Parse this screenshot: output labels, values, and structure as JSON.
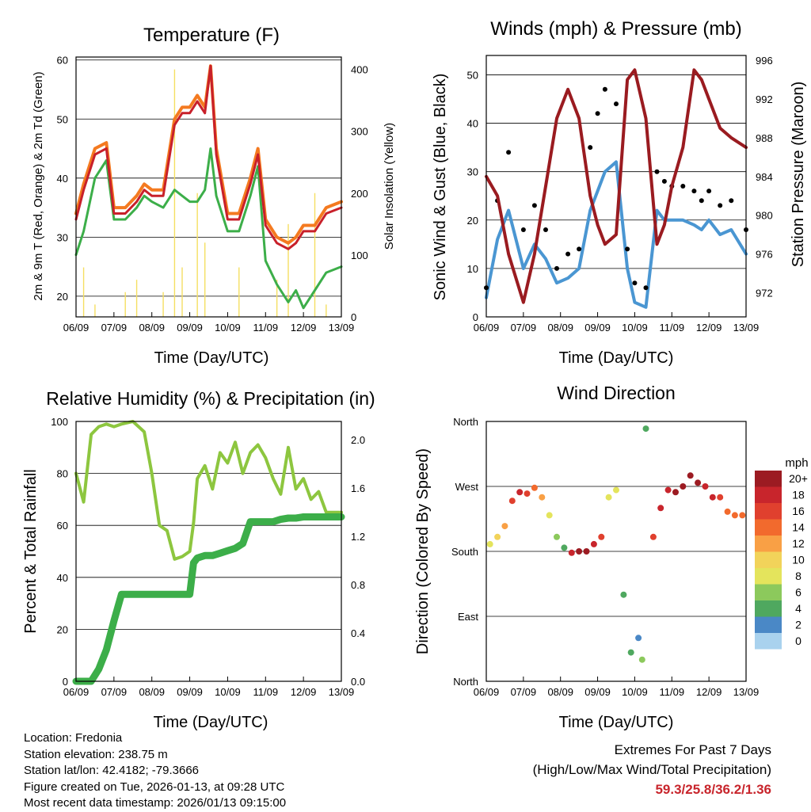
{
  "colors": {
    "temp2m": "#c8202a",
    "temp9m": "#f47a20",
    "dewpoint": "#3cae49",
    "solar": "#f5df62",
    "wind": "#4a96d2",
    "gust": "#000000",
    "pressure": "#9a1b20",
    "rh": "#8dc63f",
    "precip": "#3cae49",
    "extremes_value": "#c8252c"
  },
  "panels": {
    "temperature": {
      "title": "Temperature (F)",
      "xlabel": "Time (Day/UTC)",
      "ylabel_left": "2m & 9m T (Red, Orange) & 2m Td (Green)",
      "ylabel_right": "Solar Insolation (Yellow)",
      "yticks_left": [
        "60",
        "50",
        "40",
        "30",
        "20"
      ],
      "yticks_right": [
        "400",
        "300",
        "200",
        "100",
        "0"
      ]
    },
    "wind": {
      "title": "Winds (mph) & Pressure (mb)",
      "xlabel": "Time (Day/UTC)",
      "ylabel_left": "Sonic Wind & Gust (Blue, Black)",
      "ylabel_right": "Station Pressure (Maroon)",
      "yticks_left": [
        "50",
        "40",
        "30",
        "20",
        "10",
        "0"
      ],
      "yticks_right": [
        "996",
        "992",
        "988",
        "984",
        "980",
        "976",
        "972"
      ]
    },
    "humidity": {
      "title": "Relative Humidity (%) & Precipitation (in)",
      "xlabel": "Time (Day/UTC)",
      "ylabel_left": "Percent & Total Rainfall",
      "yticks_left": [
        "100",
        "80",
        "60",
        "40",
        "20",
        "0"
      ],
      "yticks_right": [
        "2.0",
        "1.6",
        "1.2",
        "0.8",
        "0.4",
        "0.0"
      ]
    },
    "direction": {
      "title": "Wind Direction",
      "xlabel": "Time (Day/UTC)",
      "ylabel_left": "Direction (Colored By Speed)",
      "yticks_left": [
        "North",
        "West",
        "South",
        "East",
        "North"
      ],
      "legend_title": "mph",
      "legend_labels": [
        "20+",
        "18",
        "16",
        "14",
        "12",
        "10",
        "8",
        "6",
        "4",
        "2",
        "0"
      ],
      "legend_colors": [
        "#9c1b22",
        "#c8252c",
        "#e0402e",
        "#f26a2d",
        "#f9a045",
        "#f2d35a",
        "#e4e45c",
        "#8cc95c",
        "#4fa85f",
        "#4a88c6",
        "#a9d2ee"
      ]
    }
  },
  "chart_data": [
    {
      "type": "line",
      "title": "Temperature (F)",
      "xlabel": "Time (Day/UTC)",
      "ylabel": "2m & 9m T (Red, Orange) & 2m Td (Green)",
      "y2label": "Solar Insolation (Yellow)",
      "categories": [
        "06/09",
        "07/09",
        "08/09",
        "09/09",
        "10/09",
        "11/09",
        "12/09",
        "13/09"
      ],
      "x": [
        0,
        0.2,
        0.5,
        0.8,
        1.0,
        1.3,
        1.6,
        1.8,
        2.0,
        2.3,
        2.6,
        2.8,
        3.0,
        3.2,
        3.4,
        3.55,
        3.7,
        4.0,
        4.3,
        4.6,
        4.8,
        5.0,
        5.3,
        5.6,
        5.8,
        6.0,
        6.3,
        6.6,
        7.0
      ],
      "ylim": [
        16.5,
        60.5
      ],
      "y2lim": [
        0,
        420
      ],
      "series": [
        {
          "name": "2m T",
          "values": [
            33,
            38,
            44,
            45,
            34,
            34,
            36,
            38,
            37,
            37,
            49,
            51,
            51,
            53,
            51,
            59,
            44,
            33,
            33,
            39,
            44,
            32,
            29,
            28,
            29,
            31,
            31,
            34,
            35
          ]
        },
        {
          "name": "9m T",
          "values": [
            34,
            39,
            45,
            46,
            35,
            35,
            37,
            39,
            38,
            38,
            50,
            52,
            52,
            54,
            52,
            59,
            45,
            34,
            34,
            40,
            45,
            33,
            30,
            29,
            30,
            32,
            32,
            35,
            36
          ]
        },
        {
          "name": "2m Td",
          "values": [
            27,
            31,
            40,
            43,
            33,
            33,
            35,
            37,
            36,
            35,
            38,
            37,
            36,
            36,
            38,
            45,
            37,
            31,
            31,
            37,
            42,
            26,
            22,
            19,
            21,
            18,
            21,
            24,
            25
          ]
        },
        {
          "name": "Solar Insolation",
          "values": [
            0,
            80,
            20,
            0,
            0,
            40,
            60,
            0,
            0,
            40,
            400,
            80,
            0,
            200,
            120,
            0,
            0,
            0,
            80,
            0,
            0,
            0,
            60,
            150,
            0,
            0,
            200,
            20,
            0
          ]
        }
      ]
    },
    {
      "type": "line",
      "title": "Winds (mph) & Pressure (mb)",
      "xlabel": "Time (Day/UTC)",
      "ylabel": "Sonic Wind & Gust (Blue, Black)",
      "y2label": "Station Pressure (Maroon)",
      "categories": [
        "06/09",
        "07/09",
        "08/09",
        "09/09",
        "10/09",
        "11/09",
        "12/09",
        "13/09"
      ],
      "x": [
        0,
        0.3,
        0.6,
        1.0,
        1.3,
        1.6,
        1.9,
        2.2,
        2.5,
        2.8,
        3.0,
        3.2,
        3.5,
        3.8,
        4.0,
        4.3,
        4.6,
        4.8,
        5.0,
        5.3,
        5.6,
        5.8,
        6.0,
        6.3,
        6.6,
        7.0
      ],
      "ylim": [
        0,
        54
      ],
      "y2lim": [
        969.5,
        996.5
      ],
      "series": [
        {
          "name": "Sonic Wind",
          "values": [
            4,
            16,
            22,
            10,
            15,
            12,
            7,
            8,
            10,
            22,
            26,
            30,
            32,
            10,
            3,
            2,
            22,
            20,
            20,
            20,
            19,
            18,
            20,
            17,
            18,
            13
          ]
        },
        {
          "name": "Gust",
          "values": [
            6,
            24,
            34,
            18,
            23,
            18,
            10,
            13,
            14,
            35,
            42,
            47,
            44,
            14,
            7,
            6,
            30,
            28,
            27,
            27,
            26,
            24,
            26,
            23,
            24,
            18
          ]
        },
        {
          "name": "Station Pressure",
          "values": [
            984,
            982,
            976,
            971,
            976,
            983,
            990,
            993,
            990,
            982,
            979,
            977,
            978,
            994,
            995,
            990,
            977,
            979,
            983,
            987,
            995,
            994,
            992,
            989,
            988,
            987
          ]
        }
      ]
    },
    {
      "type": "line",
      "title": "Relative Humidity (%) & Precipitation (in)",
      "xlabel": "Time (Day/UTC)",
      "ylabel": "Percent & Total Rainfall",
      "categories": [
        "06/09",
        "07/09",
        "08/09",
        "09/09",
        "10/09",
        "11/09",
        "12/09",
        "13/09"
      ],
      "x": [
        0,
        0.2,
        0.4,
        0.6,
        0.8,
        1.0,
        1.2,
        1.5,
        1.8,
        2.0,
        2.2,
        2.4,
        2.6,
        2.8,
        3.0,
        3.1,
        3.2,
        3.4,
        3.6,
        3.8,
        4.0,
        4.2,
        4.4,
        4.6,
        4.8,
        5.0,
        5.2,
        5.4,
        5.6,
        5.8,
        6.0,
        6.2,
        6.4,
        6.6,
        6.8,
        7.0
      ],
      "ylim": [
        0,
        100
      ],
      "y2lim": [
        0,
        2.15
      ],
      "series": [
        {
          "name": "Relative Humidity",
          "values": [
            80,
            69,
            95,
            98,
            99,
            98,
            99,
            100,
            96,
            80,
            60,
            58,
            47,
            48,
            50,
            61,
            78,
            83,
            74,
            88,
            84,
            92,
            80,
            88,
            91,
            86,
            78,
            72,
            90,
            74,
            78,
            70,
            73,
            65,
            65,
            65
          ]
        },
        {
          "name": "Total Precipitation",
          "values": [
            0.0,
            0.0,
            0.0,
            0.1,
            0.26,
            0.5,
            0.72,
            0.72,
            0.72,
            0.72,
            0.72,
            0.72,
            0.72,
            0.72,
            0.72,
            0.98,
            1.02,
            1.04,
            1.04,
            1.06,
            1.08,
            1.1,
            1.14,
            1.32,
            1.32,
            1.32,
            1.32,
            1.34,
            1.35,
            1.35,
            1.36,
            1.36,
            1.36,
            1.36,
            1.36,
            1.36
          ]
        }
      ]
    },
    {
      "type": "scatter",
      "title": "Wind Direction",
      "xlabel": "Time (Day/UTC)",
      "ylabel": "Direction (Colored By Speed)",
      "categories": [
        "06/09",
        "07/09",
        "08/09",
        "09/09",
        "10/09",
        "11/09",
        "12/09",
        "13/09"
      ],
      "yticklabels": [
        "North",
        "East",
        "South",
        "West",
        "North"
      ],
      "ylim": [
        0,
        360
      ],
      "x": [
        0.1,
        0.3,
        0.5,
        0.7,
        0.9,
        1.1,
        1.3,
        1.5,
        1.7,
        1.9,
        2.1,
        2.3,
        2.5,
        2.7,
        2.9,
        3.1,
        3.3,
        3.5,
        3.7,
        3.9,
        4.1,
        4.2,
        4.3,
        4.5,
        4.7,
        4.9,
        5.1,
        5.3,
        5.5,
        5.7,
        5.9,
        6.1,
        6.3,
        6.5,
        6.7,
        6.9
      ],
      "series": [
        {
          "name": "Direction (deg)",
          "values": [
            190,
            200,
            215,
            250,
            262,
            260,
            268,
            255,
            230,
            200,
            185,
            178,
            180,
            180,
            190,
            200,
            255,
            265,
            120,
            40,
            60,
            30,
            350,
            200,
            240,
            265,
            262,
            270,
            285,
            275,
            270,
            255,
            255,
            235,
            230,
            230
          ]
        },
        {
          "name": "Speed (mph)",
          "values": [
            7,
            9,
            12,
            16,
            17,
            16,
            14,
            12,
            8,
            5,
            4,
            17,
            19,
            20,
            18,
            15,
            7,
            8,
            3,
            4,
            2,
            5,
            4,
            16,
            17,
            18,
            19,
            20,
            20,
            19,
            18,
            17,
            16,
            14,
            13,
            14
          ]
        }
      ]
    }
  ],
  "footer": {
    "location": "Location: Fredonia",
    "elevation": "Station elevation: 238.75 m",
    "latlon": "Station lat/lon: 42.4182; -79.3666",
    "created": "Figure created on Tue, 2026-01-13, at 09:28 UTC",
    "latest": "Most recent data timestamp: 2026/01/13 09:15:00"
  },
  "extremes": {
    "title": "Extremes For Past 7 Days",
    "subtitle": "(High/Low/Max Wind/Total Precipitation)",
    "values": "59.3/25.8/36.2/1.36"
  }
}
